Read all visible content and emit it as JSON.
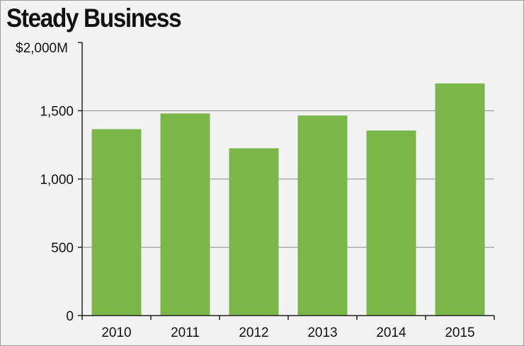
{
  "chart_data": {
    "type": "bar",
    "title": "Steady Business",
    "categories": [
      "2010",
      "2011",
      "2012",
      "2013",
      "2014",
      "2015"
    ],
    "values": [
      1365,
      1480,
      1225,
      1465,
      1355,
      1700
    ],
    "ylim": [
      0,
      2000
    ],
    "yticks": [
      0,
      500,
      1000,
      1500,
      2000
    ],
    "ytick_labels": [
      "0",
      "500",
      "1,000",
      "1,500",
      "$2,000M"
    ],
    "grid": true,
    "bar_color": "#7ab648"
  }
}
